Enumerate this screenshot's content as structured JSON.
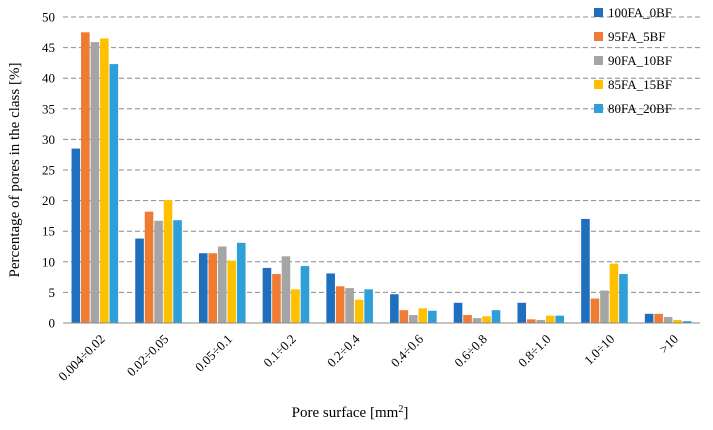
{
  "chart_data": {
    "type": "bar",
    "xlabel": "Pore surface [mm²]",
    "ylabel": "Percentage of pores in the class [%]",
    "ylim": [
      0,
      50
    ],
    "yticks": [
      0,
      5,
      10,
      15,
      20,
      25,
      30,
      35,
      40,
      45,
      50
    ],
    "grid": "horizontal dashed",
    "legend_position": "top-right",
    "categories": [
      "0.004÷0.02",
      "0.02÷0.05",
      "0.05÷0.1",
      "0.1÷0.2",
      "0.2÷0.4",
      "0.4÷0.6",
      "0.6÷0.8",
      "0.8÷1.0",
      "1.0÷10",
      ">10"
    ],
    "series": [
      {
        "name": "100FA_0BF",
        "color": "#1f6fbf",
        "values": [
          28.5,
          13.8,
          11.4,
          9.0,
          8.1,
          4.7,
          3.3,
          3.3,
          17.0,
          1.5
        ]
      },
      {
        "name": "95FA_5BF",
        "color": "#f07b32",
        "values": [
          47.5,
          18.2,
          11.4,
          8.0,
          6.0,
          2.1,
          1.3,
          0.6,
          4.0,
          1.5
        ]
      },
      {
        "name": "90FA_10BF",
        "color": "#a5a5a5",
        "values": [
          45.9,
          16.7,
          12.5,
          10.9,
          5.7,
          1.3,
          0.8,
          0.5,
          5.3,
          1.0
        ]
      },
      {
        "name": "85FA_15BF",
        "color": "#ffc000",
        "values": [
          46.5,
          20.1,
          10.2,
          5.5,
          3.8,
          2.4,
          1.1,
          1.2,
          9.7,
          0.5
        ]
      },
      {
        "name": "80FA_20BF",
        "color": "#2e9fd9",
        "values": [
          42.3,
          16.8,
          13.1,
          9.3,
          5.5,
          2.0,
          2.1,
          1.2,
          8.0,
          0.3
        ]
      }
    ]
  }
}
